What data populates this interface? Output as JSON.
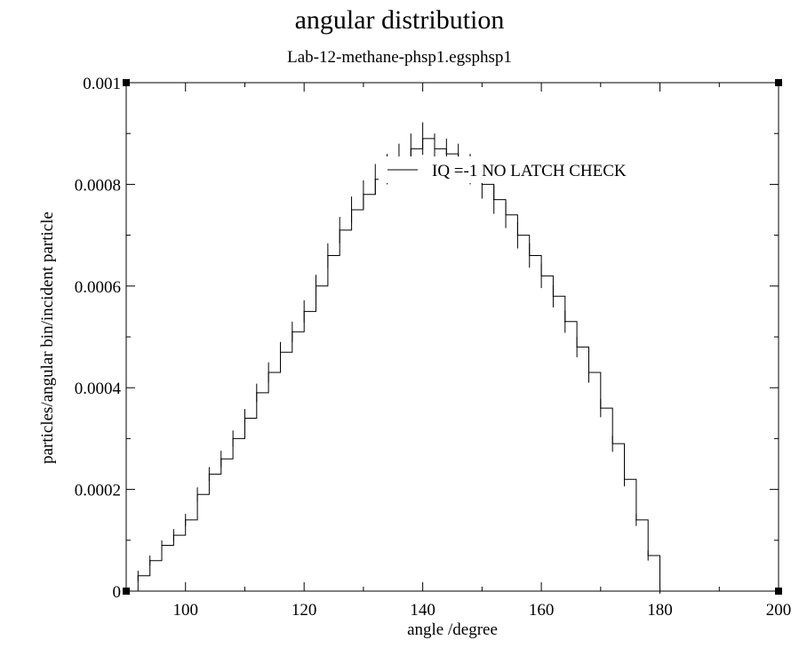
{
  "chart_data": {
    "type": "line",
    "title": "angular distribution",
    "subtitle": "Lab-12-methane-phsp1.egsphsp1",
    "xlabel": "angle /degree",
    "ylabel": "particles/angular bin/incident particle",
    "xlim": [
      90,
      200
    ],
    "ylim": [
      0,
      0.001
    ],
    "x_ticks": [
      100,
      120,
      140,
      160,
      180,
      200
    ],
    "x_tick_labels": [
      "100",
      "120",
      "140",
      "160",
      "180",
      "200"
    ],
    "y_ticks": [
      0,
      0.0002,
      0.0004,
      0.0006,
      0.0008,
      0.001
    ],
    "y_tick_labels": [
      "0",
      "0.0002",
      "0.0004",
      "0.0006",
      "0.0008",
      "0.001"
    ],
    "grid": false,
    "legend_position": "top-right",
    "error_bars": true,
    "series": [
      {
        "name": "IQ =-1 NO LATCH CHECK",
        "color": "#000000",
        "x": [
          90,
          92,
          94,
          96,
          98,
          100,
          102,
          104,
          106,
          108,
          110,
          112,
          114,
          116,
          118,
          120,
          122,
          124,
          126,
          128,
          130,
          132,
          134,
          136,
          138,
          140,
          142,
          144,
          146,
          148,
          150,
          152,
          154,
          156,
          158,
          160,
          162,
          164,
          166,
          168,
          170,
          172,
          174,
          176,
          178,
          180
        ],
        "y": [
          0.0,
          3e-05,
          6e-05,
          9e-05,
          0.00011,
          0.00014,
          0.00019,
          0.00023,
          0.00026,
          0.0003,
          0.00034,
          0.00039,
          0.00043,
          0.00047,
          0.00051,
          0.00055,
          0.0006,
          0.00066,
          0.00071,
          0.00075,
          0.00078,
          0.00081,
          0.00083,
          0.00085,
          0.00087,
          0.00089,
          0.00087,
          0.00086,
          0.00085,
          0.00083,
          0.0008,
          0.00077,
          0.00074,
          0.0007,
          0.00066,
          0.00062,
          0.00058,
          0.00053,
          0.00048,
          0.00043,
          0.00036,
          0.00029,
          0.00022,
          0.00014,
          7e-05,
          0.0
        ],
        "yerr": [
          5e-06,
          1e-05,
          1e-05,
          1e-05,
          1.2e-05,
          1.2e-05,
          1.4e-05,
          1.4e-05,
          1.6e-05,
          1.6e-05,
          1.8e-05,
          1.8e-05,
          2e-05,
          2e-05,
          2e-05,
          2.2e-05,
          2.2e-05,
          2.4e-05,
          2.6e-05,
          2.6e-05,
          2.8e-05,
          3e-05,
          3e-05,
          3e-05,
          3e-05,
          3.2e-05,
          3e-05,
          3e-05,
          3e-05,
          3e-05,
          2.8e-05,
          2.8e-05,
          2.6e-05,
          2.6e-05,
          2.4e-05,
          2.4e-05,
          2.2e-05,
          2.2e-05,
          2e-05,
          2e-05,
          1.8e-05,
          1.6e-05,
          1.4e-05,
          1.2e-05,
          1e-05,
          5e-06
        ]
      }
    ]
  }
}
